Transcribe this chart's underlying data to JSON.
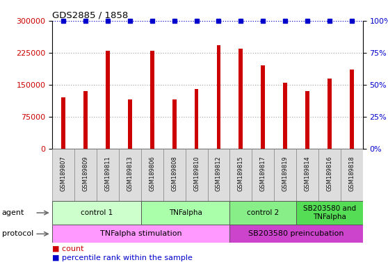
{
  "title": "GDS2885 / 1858",
  "samples": [
    "GSM189807",
    "GSM189809",
    "GSM189811",
    "GSM189813",
    "GSM189806",
    "GSM189808",
    "GSM189810",
    "GSM189812",
    "GSM189815",
    "GSM189817",
    "GSM189819",
    "GSM189814",
    "GSM189816",
    "GSM189818"
  ],
  "counts": [
    120000,
    135000,
    230000,
    115000,
    230000,
    115000,
    140000,
    242000,
    235000,
    195000,
    155000,
    135000,
    165000,
    185000
  ],
  "ylim_left": [
    0,
    300000
  ],
  "ylim_right": [
    0,
    100
  ],
  "yticks_left": [
    0,
    75000,
    150000,
    225000,
    300000
  ],
  "yticks_right": [
    0,
    25,
    50,
    75,
    100
  ],
  "agent_groups": [
    {
      "label": "control 1",
      "start": 0,
      "end": 4
    },
    {
      "label": "TNFalpha",
      "start": 4,
      "end": 8
    },
    {
      "label": "control 2",
      "start": 8,
      "end": 11
    },
    {
      "label": "SB203580 and\nTNFalpha",
      "start": 11,
      "end": 14
    }
  ],
  "agent_colors": [
    "#ccffcc",
    "#aaffaa",
    "#88ee88",
    "#55dd55"
  ],
  "protocol_groups": [
    {
      "label": "TNFalpha stimulation",
      "start": 0,
      "end": 8
    },
    {
      "label": "SB203580 preincubation",
      "start": 8,
      "end": 14
    }
  ],
  "protocol_colors": [
    "#ff99ff",
    "#cc44cc"
  ],
  "bar_color": "#cc0000",
  "dot_color": "#0000cc",
  "tick_color_left": "#cc0000",
  "tick_color_right": "#0000cc",
  "sample_bg": "#dddddd",
  "bar_width": 0.18
}
